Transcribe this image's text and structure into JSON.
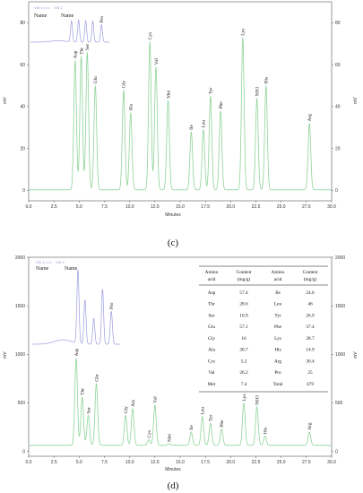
{
  "colors": {
    "trace": "#8fd49a",
    "inset_trace": "#9c9ce0",
    "axis": "#555555"
  },
  "chart_data": [
    {
      "type": "line",
      "panel_label": "(c)",
      "xlabel": "Minutes",
      "ylabel": "mV",
      "xlim": [
        0,
        30
      ],
      "ylim": [
        -5,
        90
      ],
      "x_ticks": [
        "0.0",
        "2.5",
        "5.0",
        "7.5",
        "10.0",
        "12.5",
        "15.0",
        "17.5",
        "20.0",
        "22.5",
        "25.0",
        "27.5",
        "30.0"
      ],
      "y_ticks": [
        "0",
        "20",
        "40",
        "60",
        "80"
      ],
      "legend": [
        "VW 1",
        "VW 2"
      ],
      "inset": {
        "name_labels": [
          "Name",
          "Name"
        ],
        "peak_labels": [
          "Pro"
        ]
      },
      "peaks": [
        {
          "name": "Asp",
          "x": 4.6,
          "y": 62
        },
        {
          "name": "Thr",
          "x": 5.2,
          "y": 64
        },
        {
          "name": "Ser",
          "x": 5.8,
          "y": 66
        },
        {
          "name": "Glu",
          "x": 6.6,
          "y": 50
        },
        {
          "name": "Gly",
          "x": 9.4,
          "y": 48
        },
        {
          "name": "Ala",
          "x": 10.1,
          "y": 37
        },
        {
          "name": "Cys",
          "x": 12.0,
          "y": 71
        },
        {
          "name": "Val",
          "x": 12.6,
          "y": 59
        },
        {
          "name": "Met",
          "x": 13.8,
          "y": 43
        },
        {
          "name": "Ile",
          "x": 16.1,
          "y": 28
        },
        {
          "name": "Leu",
          "x": 17.3,
          "y": 29
        },
        {
          "name": "Tyr",
          "x": 18.0,
          "y": 45
        },
        {
          "name": "Phe",
          "x": 19.0,
          "y": 38
        },
        {
          "name": "Lys",
          "x": 21.2,
          "y": 73
        },
        {
          "name": "NH3",
          "x": 22.6,
          "y": 44
        },
        {
          "name": "His",
          "x": 23.5,
          "y": 50
        },
        {
          "name": "Arg",
          "x": 27.8,
          "y": 32
        }
      ]
    },
    {
      "type": "line",
      "panel_label": "(d)",
      "xlabel": "Minutes",
      "ylabel": "mV",
      "xlim": [
        0,
        30
      ],
      "ylim": [
        -50,
        2000
      ],
      "x_ticks": [
        "0.0",
        "2.5",
        "5.0",
        "7.5",
        "10.0",
        "12.5",
        "15.0",
        "17.5",
        "20.0",
        "22.5",
        "25.0",
        "27.5",
        "30.0"
      ],
      "y_ticks": [
        "0",
        "500",
        "1000",
        "1500",
        "2000"
      ],
      "legend": [
        "VW 1",
        "VW 2"
      ],
      "inset": {
        "name_labels": [
          "Name",
          "Name"
        ],
        "peak_labels": [
          "Pro"
        ]
      },
      "peaks": [
        {
          "name": "Asp",
          "x": 4.7,
          "y": 960
        },
        {
          "name": "Thr",
          "x": 5.3,
          "y": 560
        },
        {
          "name": "Ser",
          "x": 5.9,
          "y": 370
        },
        {
          "name": "Glu",
          "x": 6.7,
          "y": 700
        },
        {
          "name": "Gly",
          "x": 9.6,
          "y": 370
        },
        {
          "name": "Ala",
          "x": 10.3,
          "y": 440
        },
        {
          "name": "Cys",
          "x": 11.9,
          "y": 120
        },
        {
          "name": "Val",
          "x": 12.5,
          "y": 480
        },
        {
          "name": "Met",
          "x": 13.9,
          "y": 80
        },
        {
          "name": "Ile",
          "x": 16.1,
          "y": 200
        },
        {
          "name": "Leu",
          "x": 17.2,
          "y": 360
        },
        {
          "name": "Tyr",
          "x": 18.0,
          "y": 290
        },
        {
          "name": "Phe",
          "x": 19.1,
          "y": 230
        },
        {
          "name": "Lys",
          "x": 21.3,
          "y": 500
        },
        {
          "name": "NH3",
          "x": 22.6,
          "y": 460
        },
        {
          "name": "His",
          "x": 23.4,
          "y": 160
        },
        {
          "name": "Arg",
          "x": 27.8,
          "y": 200
        }
      ],
      "table": {
        "headers": [
          [
            "Amino",
            "acid"
          ],
          [
            "Content",
            "(mg/g)"
          ],
          [
            "Amino",
            "acid"
          ],
          [
            "Content",
            "(mg/g)"
          ]
        ],
        "rows": [
          [
            "Asp",
            "57.4",
            "Ile",
            "24.6"
          ],
          [
            "Thr",
            "28.6",
            "Leu",
            "46"
          ],
          [
            "Ser",
            "16.9",
            "Tyr",
            "26.9"
          ],
          [
            "Glu",
            "57.1",
            "Phe",
            "37.4"
          ],
          [
            "Gly",
            "16",
            "Lys",
            "28.7"
          ],
          [
            "Ala",
            "30.7",
            "His",
            "14.9"
          ],
          [
            "Cys",
            "5.2",
            "Arg",
            "30.4"
          ],
          [
            "Val",
            "26.2",
            "Pro",
            "25"
          ],
          [
            "Met",
            "7.4",
            "Total",
            "479"
          ]
        ]
      }
    }
  ]
}
